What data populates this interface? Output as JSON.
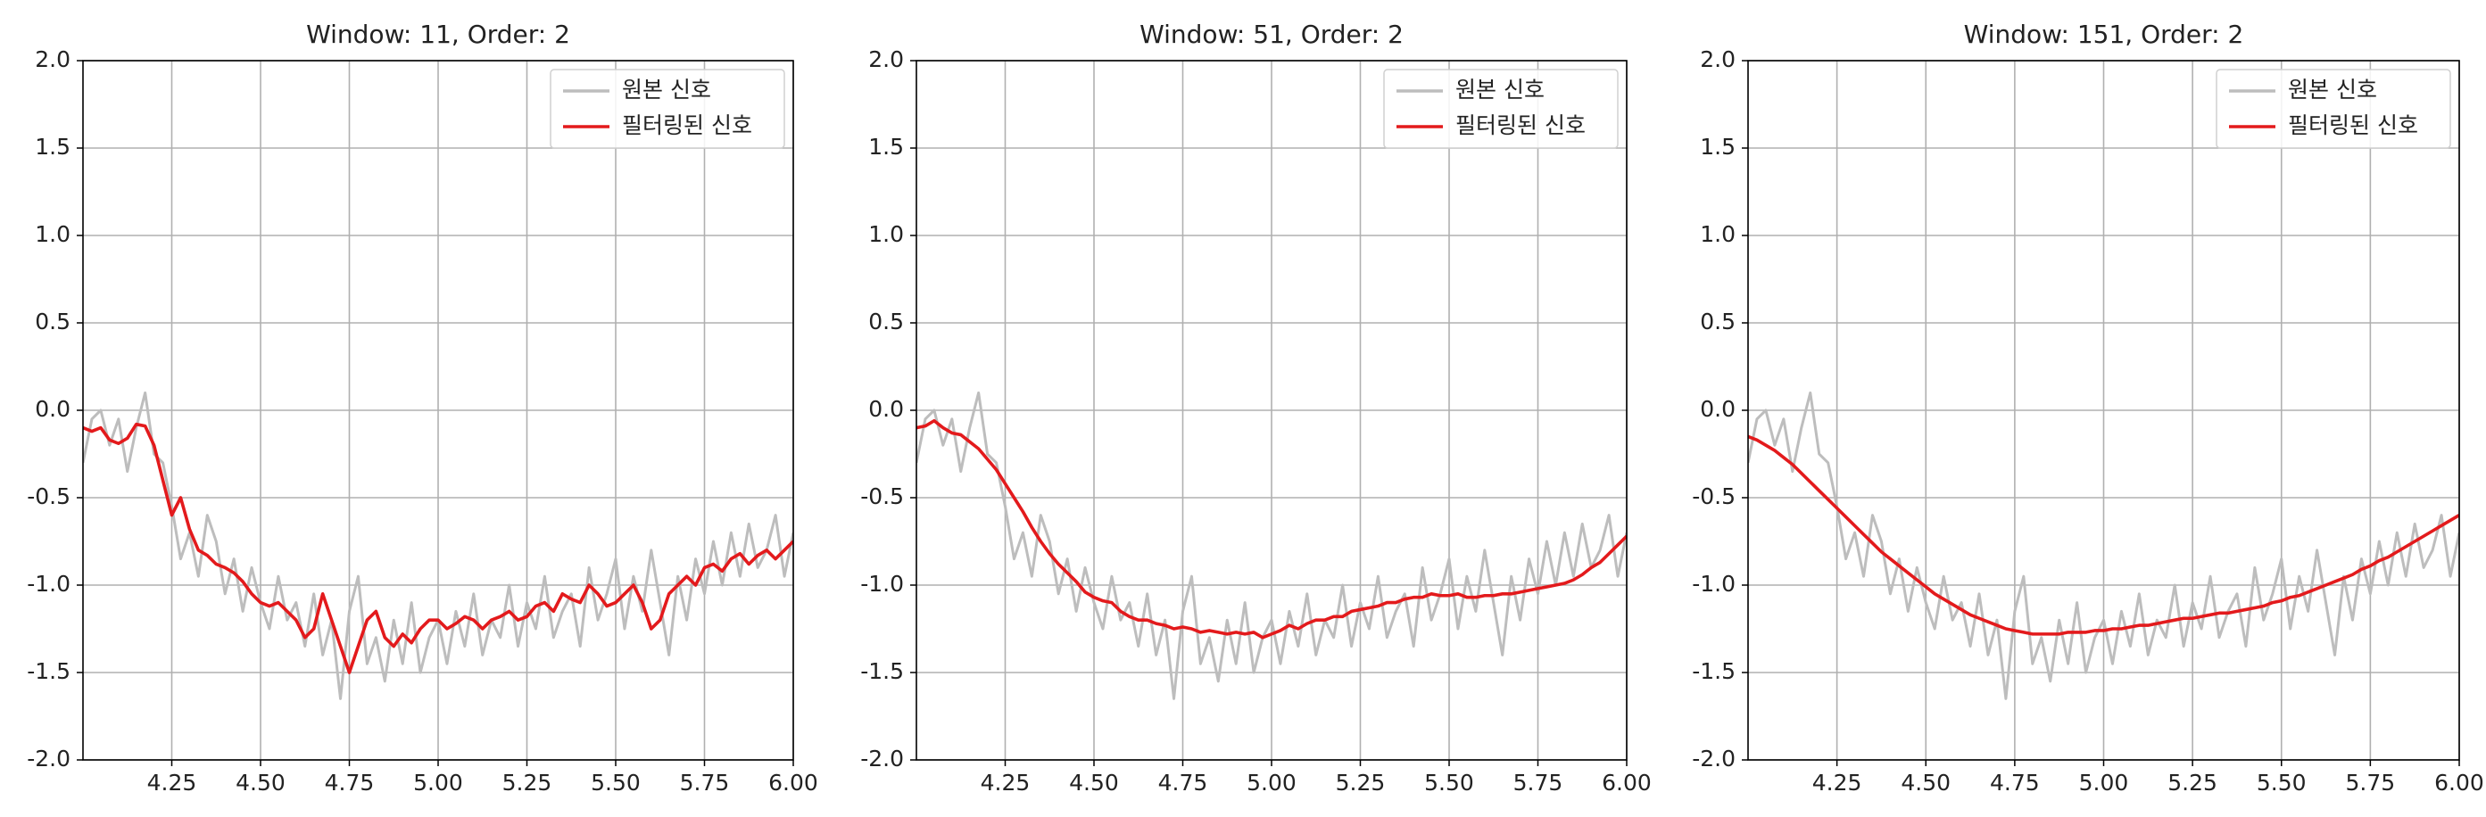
{
  "chart_data": [
    {
      "type": "line",
      "title": "Window: 11, Order: 2",
      "grid": true,
      "legend": "upper right",
      "xlim": [
        4.0,
        6.0
      ],
      "ylim": [
        -2,
        2
      ],
      "xticks": [
        4.25,
        {
          "value": 4.5,
          "label": "4.50"
        },
        4.75,
        {
          "value": 5,
          "label": "5.00"
        },
        5.25,
        {
          "value": 5.5,
          "label": "5.50"
        },
        5.75,
        {
          "value": 6,
          "label": "6.00"
        }
      ],
      "yticks": [
        {
          "value": -2,
          "label": "-2.0"
        },
        -1.5,
        {
          "value": -1,
          "label": "-1.0"
        },
        -0.5,
        {
          "value": 0,
          "label": "0.0"
        },
        0.5,
        {
          "value": 1,
          "label": "1.0"
        },
        1.5,
        {
          "value": 2,
          "label": "2.0"
        }
      ],
      "x": [
        4,
        4.025,
        4.05,
        4.075,
        4.1,
        4.125,
        4.15,
        4.175,
        4.2,
        4.225,
        4.25,
        4.275,
        4.3,
        4.325,
        4.35,
        4.375,
        4.4,
        4.425,
        4.45,
        4.475,
        4.5,
        4.525,
        4.55,
        4.575,
        4.6,
        4.625,
        4.65,
        4.675,
        4.7,
        4.725,
        4.75,
        4.775,
        4.8,
        4.825,
        4.85,
        4.875,
        4.9,
        4.925,
        4.95,
        4.975,
        5,
        5.025,
        5.05,
        5.075,
        5.1,
        5.125,
        5.15,
        5.175,
        5.2,
        5.225,
        5.25,
        5.275,
        5.3,
        5.325,
        5.35,
        5.375,
        5.4,
        5.425,
        5.45,
        5.475,
        5.5,
        5.525,
        5.55,
        5.575,
        5.6,
        5.625,
        5.65,
        5.675,
        5.7,
        5.725,
        5.75,
        5.775,
        5.8,
        5.825,
        5.85,
        5.875,
        5.9,
        5.925,
        5.95,
        5.975,
        6
      ],
      "series": [
        {
          "name": "원본 신호",
          "color": "#bdbdbd",
          "values": [
            -0.3,
            -0.05,
            0.0,
            -0.2,
            -0.05,
            -0.35,
            -0.1,
            0.1,
            -0.25,
            -0.3,
            -0.55,
            -0.85,
            -0.7,
            -0.95,
            -0.6,
            -0.75,
            -1.05,
            -0.85,
            -1.15,
            -0.9,
            -1.1,
            -1.25,
            -0.95,
            -1.2,
            -1.1,
            -1.35,
            -1.05,
            -1.4,
            -1.2,
            -1.65,
            -1.15,
            -0.95,
            -1.45,
            -1.3,
            -1.55,
            -1.2,
            -1.45,
            -1.1,
            -1.5,
            -1.3,
            -1.2,
            -1.45,
            -1.15,
            -1.35,
            -1.05,
            -1.4,
            -1.2,
            -1.3,
            -1.0,
            -1.35,
            -1.1,
            -1.25,
            -0.95,
            -1.3,
            -1.15,
            -1.05,
            -1.35,
            -0.9,
            -1.2,
            -1.05,
            -0.85,
            -1.25,
            -0.95,
            -1.15,
            -0.8,
            -1.1,
            -1.4,
            -0.95,
            -1.2,
            -0.85,
            -1.05,
            -0.75,
            -1.0,
            -0.7,
            -0.95,
            -0.65,
            -0.9,
            -0.8,
            -0.6,
            -0.95,
            -0.7
          ]
        },
        {
          "name": "필터링된 신호",
          "color": "#e31a1c",
          "values": [
            -0.1,
            -0.12,
            -0.1,
            -0.17,
            -0.19,
            -0.16,
            -0.08,
            -0.09,
            -0.2,
            -0.4,
            -0.6,
            -0.5,
            -0.68,
            -0.8,
            -0.83,
            -0.88,
            -0.9,
            -0.93,
            -0.98,
            -1.05,
            -1.1,
            -1.12,
            -1.1,
            -1.15,
            -1.2,
            -1.3,
            -1.25,
            -1.05,
            -1.2,
            -1.35,
            -1.5,
            -1.35,
            -1.2,
            -1.15,
            -1.3,
            -1.35,
            -1.28,
            -1.33,
            -1.25,
            -1.2,
            -1.2,
            -1.25,
            -1.22,
            -1.18,
            -1.2,
            -1.25,
            -1.2,
            -1.18,
            -1.15,
            -1.2,
            -1.18,
            -1.12,
            -1.1,
            -1.15,
            -1.05,
            -1.08,
            -1.1,
            -1.0,
            -1.05,
            -1.12,
            -1.1,
            -1.05,
            -1.0,
            -1.1,
            -1.25,
            -1.2,
            -1.05,
            -1.0,
            -0.95,
            -1.0,
            -0.9,
            -0.88,
            -0.92,
            -0.85,
            -0.82,
            -0.88,
            -0.83,
            -0.8,
            -0.85,
            -0.8,
            -0.75
          ]
        }
      ]
    },
    {
      "type": "line",
      "title": "Window: 51, Order: 2",
      "grid": true,
      "legend": "upper right",
      "xlim": [
        4.0,
        6.0
      ],
      "ylim": [
        -2,
        2
      ],
      "xticks": [
        4.25,
        {
          "value": 4.5,
          "label": "4.50"
        },
        4.75,
        {
          "value": 5,
          "label": "5.00"
        },
        5.25,
        {
          "value": 5.5,
          "label": "5.50"
        },
        5.75,
        {
          "value": 6,
          "label": "6.00"
        }
      ],
      "yticks": [
        {
          "value": -2,
          "label": "-2.0"
        },
        -1.5,
        {
          "value": -1,
          "label": "-1.0"
        },
        -0.5,
        {
          "value": 0,
          "label": "0.0"
        },
        0.5,
        {
          "value": 1,
          "label": "1.0"
        },
        1.5,
        {
          "value": 2,
          "label": "2.0"
        }
      ],
      "x": [
        4,
        4.025,
        4.05,
        4.075,
        4.1,
        4.125,
        4.15,
        4.175,
        4.2,
        4.225,
        4.25,
        4.275,
        4.3,
        4.325,
        4.35,
        4.375,
        4.4,
        4.425,
        4.45,
        4.475,
        4.5,
        4.525,
        4.55,
        4.575,
        4.6,
        4.625,
        4.65,
        4.675,
        4.7,
        4.725,
        4.75,
        4.775,
        4.8,
        4.825,
        4.85,
        4.875,
        4.9,
        4.925,
        4.95,
        4.975,
        5,
        5.025,
        5.05,
        5.075,
        5.1,
        5.125,
        5.15,
        5.175,
        5.2,
        5.225,
        5.25,
        5.275,
        5.3,
        5.325,
        5.35,
        5.375,
        5.4,
        5.425,
        5.45,
        5.475,
        5.5,
        5.525,
        5.55,
        5.575,
        5.6,
        5.625,
        5.65,
        5.675,
        5.7,
        5.725,
        5.75,
        5.775,
        5.8,
        5.825,
        5.85,
        5.875,
        5.9,
        5.925,
        5.95,
        5.975,
        6
      ],
      "series": [
        {
          "name": "원본 신호",
          "color": "#bdbdbd",
          "values": [
            -0.3,
            -0.05,
            0.0,
            -0.2,
            -0.05,
            -0.35,
            -0.1,
            0.1,
            -0.25,
            -0.3,
            -0.55,
            -0.85,
            -0.7,
            -0.95,
            -0.6,
            -0.75,
            -1.05,
            -0.85,
            -1.15,
            -0.9,
            -1.1,
            -1.25,
            -0.95,
            -1.2,
            -1.1,
            -1.35,
            -1.05,
            -1.4,
            -1.2,
            -1.65,
            -1.15,
            -0.95,
            -1.45,
            -1.3,
            -1.55,
            -1.2,
            -1.45,
            -1.1,
            -1.5,
            -1.3,
            -1.2,
            -1.45,
            -1.15,
            -1.35,
            -1.05,
            -1.4,
            -1.2,
            -1.3,
            -1.0,
            -1.35,
            -1.1,
            -1.25,
            -0.95,
            -1.3,
            -1.15,
            -1.05,
            -1.35,
            -0.9,
            -1.2,
            -1.05,
            -0.85,
            -1.25,
            -0.95,
            -1.15,
            -0.8,
            -1.1,
            -1.4,
            -0.95,
            -1.2,
            -0.85,
            -1.05,
            -0.75,
            -1.0,
            -0.7,
            -0.95,
            -0.65,
            -0.9,
            -0.8,
            -0.6,
            -0.95,
            -0.7
          ]
        },
        {
          "name": "필터링된 신호",
          "color": "#e31a1c",
          "values": [
            -0.1,
            -0.09,
            -0.06,
            -0.1,
            -0.13,
            -0.14,
            -0.18,
            -0.22,
            -0.28,
            -0.34,
            -0.42,
            -0.5,
            -0.58,
            -0.67,
            -0.75,
            -0.82,
            -0.88,
            -0.93,
            -0.98,
            -1.04,
            -1.07,
            -1.09,
            -1.1,
            -1.15,
            -1.18,
            -1.2,
            -1.2,
            -1.22,
            -1.23,
            -1.25,
            -1.24,
            -1.25,
            -1.27,
            -1.26,
            -1.27,
            -1.28,
            -1.27,
            -1.28,
            -1.27,
            -1.3,
            -1.28,
            -1.26,
            -1.23,
            -1.25,
            -1.22,
            -1.2,
            -1.2,
            -1.18,
            -1.18,
            -1.15,
            -1.14,
            -1.13,
            -1.12,
            -1.1,
            -1.1,
            -1.08,
            -1.07,
            -1.07,
            -1.05,
            -1.06,
            -1.06,
            -1.05,
            -1.07,
            -1.07,
            -1.06,
            -1.06,
            -1.05,
            -1.05,
            -1.04,
            -1.03,
            -1.02,
            -1.01,
            -1.0,
            -0.99,
            -0.97,
            -0.94,
            -0.9,
            -0.87,
            -0.82,
            -0.77,
            -0.72
          ]
        }
      ]
    },
    {
      "type": "line",
      "title": "Window: 151, Order: 2",
      "grid": true,
      "legend": "upper right",
      "xlim": [
        4.0,
        6.0
      ],
      "ylim": [
        -2,
        2
      ],
      "xticks": [
        4.25,
        {
          "value": 4.5,
          "label": "4.50"
        },
        4.75,
        {
          "value": 5,
          "label": "5.00"
        },
        5.25,
        {
          "value": 5.5,
          "label": "5.50"
        },
        5.75,
        {
          "value": 6,
          "label": "6.00"
        }
      ],
      "yticks": [
        {
          "value": -2,
          "label": "-2.0"
        },
        -1.5,
        {
          "value": -1,
          "label": "-1.0"
        },
        -0.5,
        {
          "value": 0,
          "label": "0.0"
        },
        0.5,
        {
          "value": 1,
          "label": "1.0"
        },
        1.5,
        {
          "value": 2,
          "label": "2.0"
        }
      ],
      "x": [
        4,
        4.025,
        4.05,
        4.075,
        4.1,
        4.125,
        4.15,
        4.175,
        4.2,
        4.225,
        4.25,
        4.275,
        4.3,
        4.325,
        4.35,
        4.375,
        4.4,
        4.425,
        4.45,
        4.475,
        4.5,
        4.525,
        4.55,
        4.575,
        4.6,
        4.625,
        4.65,
        4.675,
        4.7,
        4.725,
        4.75,
        4.775,
        4.8,
        4.825,
        4.85,
        4.875,
        4.9,
        4.925,
        4.95,
        4.975,
        5,
        5.025,
        5.05,
        5.075,
        5.1,
        5.125,
        5.15,
        5.175,
        5.2,
        5.225,
        5.25,
        5.275,
        5.3,
        5.325,
        5.35,
        5.375,
        5.4,
        5.425,
        5.45,
        5.475,
        5.5,
        5.525,
        5.55,
        5.575,
        5.6,
        5.625,
        5.65,
        5.675,
        5.7,
        5.725,
        5.75,
        5.775,
        5.8,
        5.825,
        5.85,
        5.875,
        5.9,
        5.925,
        5.95,
        5.975,
        6
      ],
      "series": [
        {
          "name": "원본 신호",
          "color": "#bdbdbd",
          "values": [
            -0.3,
            -0.05,
            0.0,
            -0.2,
            -0.05,
            -0.35,
            -0.1,
            0.1,
            -0.25,
            -0.3,
            -0.55,
            -0.85,
            -0.7,
            -0.95,
            -0.6,
            -0.75,
            -1.05,
            -0.85,
            -1.15,
            -0.9,
            -1.1,
            -1.25,
            -0.95,
            -1.2,
            -1.1,
            -1.35,
            -1.05,
            -1.4,
            -1.2,
            -1.65,
            -1.15,
            -0.95,
            -1.45,
            -1.3,
            -1.55,
            -1.2,
            -1.45,
            -1.1,
            -1.5,
            -1.3,
            -1.2,
            -1.45,
            -1.15,
            -1.35,
            -1.05,
            -1.4,
            -1.2,
            -1.3,
            -1.0,
            -1.35,
            -1.1,
            -1.25,
            -0.95,
            -1.3,
            -1.15,
            -1.05,
            -1.35,
            -0.9,
            -1.2,
            -1.05,
            -0.85,
            -1.25,
            -0.95,
            -1.15,
            -0.8,
            -1.1,
            -1.4,
            -0.95,
            -1.2,
            -0.85,
            -1.05,
            -0.75,
            -1.0,
            -0.7,
            -0.95,
            -0.65,
            -0.9,
            -0.8,
            -0.6,
            -0.95,
            -0.7
          ]
        },
        {
          "name": "필터링된 신호",
          "color": "#e31a1c",
          "values": [
            -0.15,
            -0.17,
            -0.2,
            -0.23,
            -0.27,
            -0.31,
            -0.36,
            -0.41,
            -0.46,
            -0.51,
            -0.56,
            -0.61,
            -0.66,
            -0.71,
            -0.76,
            -0.81,
            -0.85,
            -0.89,
            -0.93,
            -0.97,
            -1.01,
            -1.05,
            -1.08,
            -1.11,
            -1.14,
            -1.17,
            -1.19,
            -1.21,
            -1.23,
            -1.25,
            -1.26,
            -1.27,
            -1.28,
            -1.28,
            -1.28,
            -1.28,
            -1.27,
            -1.27,
            -1.27,
            -1.26,
            -1.26,
            -1.25,
            -1.25,
            -1.24,
            -1.23,
            -1.23,
            -1.22,
            -1.21,
            -1.2,
            -1.19,
            -1.19,
            -1.18,
            -1.17,
            -1.16,
            -1.16,
            -1.15,
            -1.14,
            -1.13,
            -1.12,
            -1.1,
            -1.09,
            -1.07,
            -1.06,
            -1.04,
            -1.02,
            -1.0,
            -0.98,
            -0.96,
            -0.94,
            -0.91,
            -0.89,
            -0.86,
            -0.84,
            -0.81,
            -0.78,
            -0.75,
            -0.72,
            -0.69,
            -0.66,
            -0.63,
            -0.6
          ]
        }
      ]
    }
  ]
}
